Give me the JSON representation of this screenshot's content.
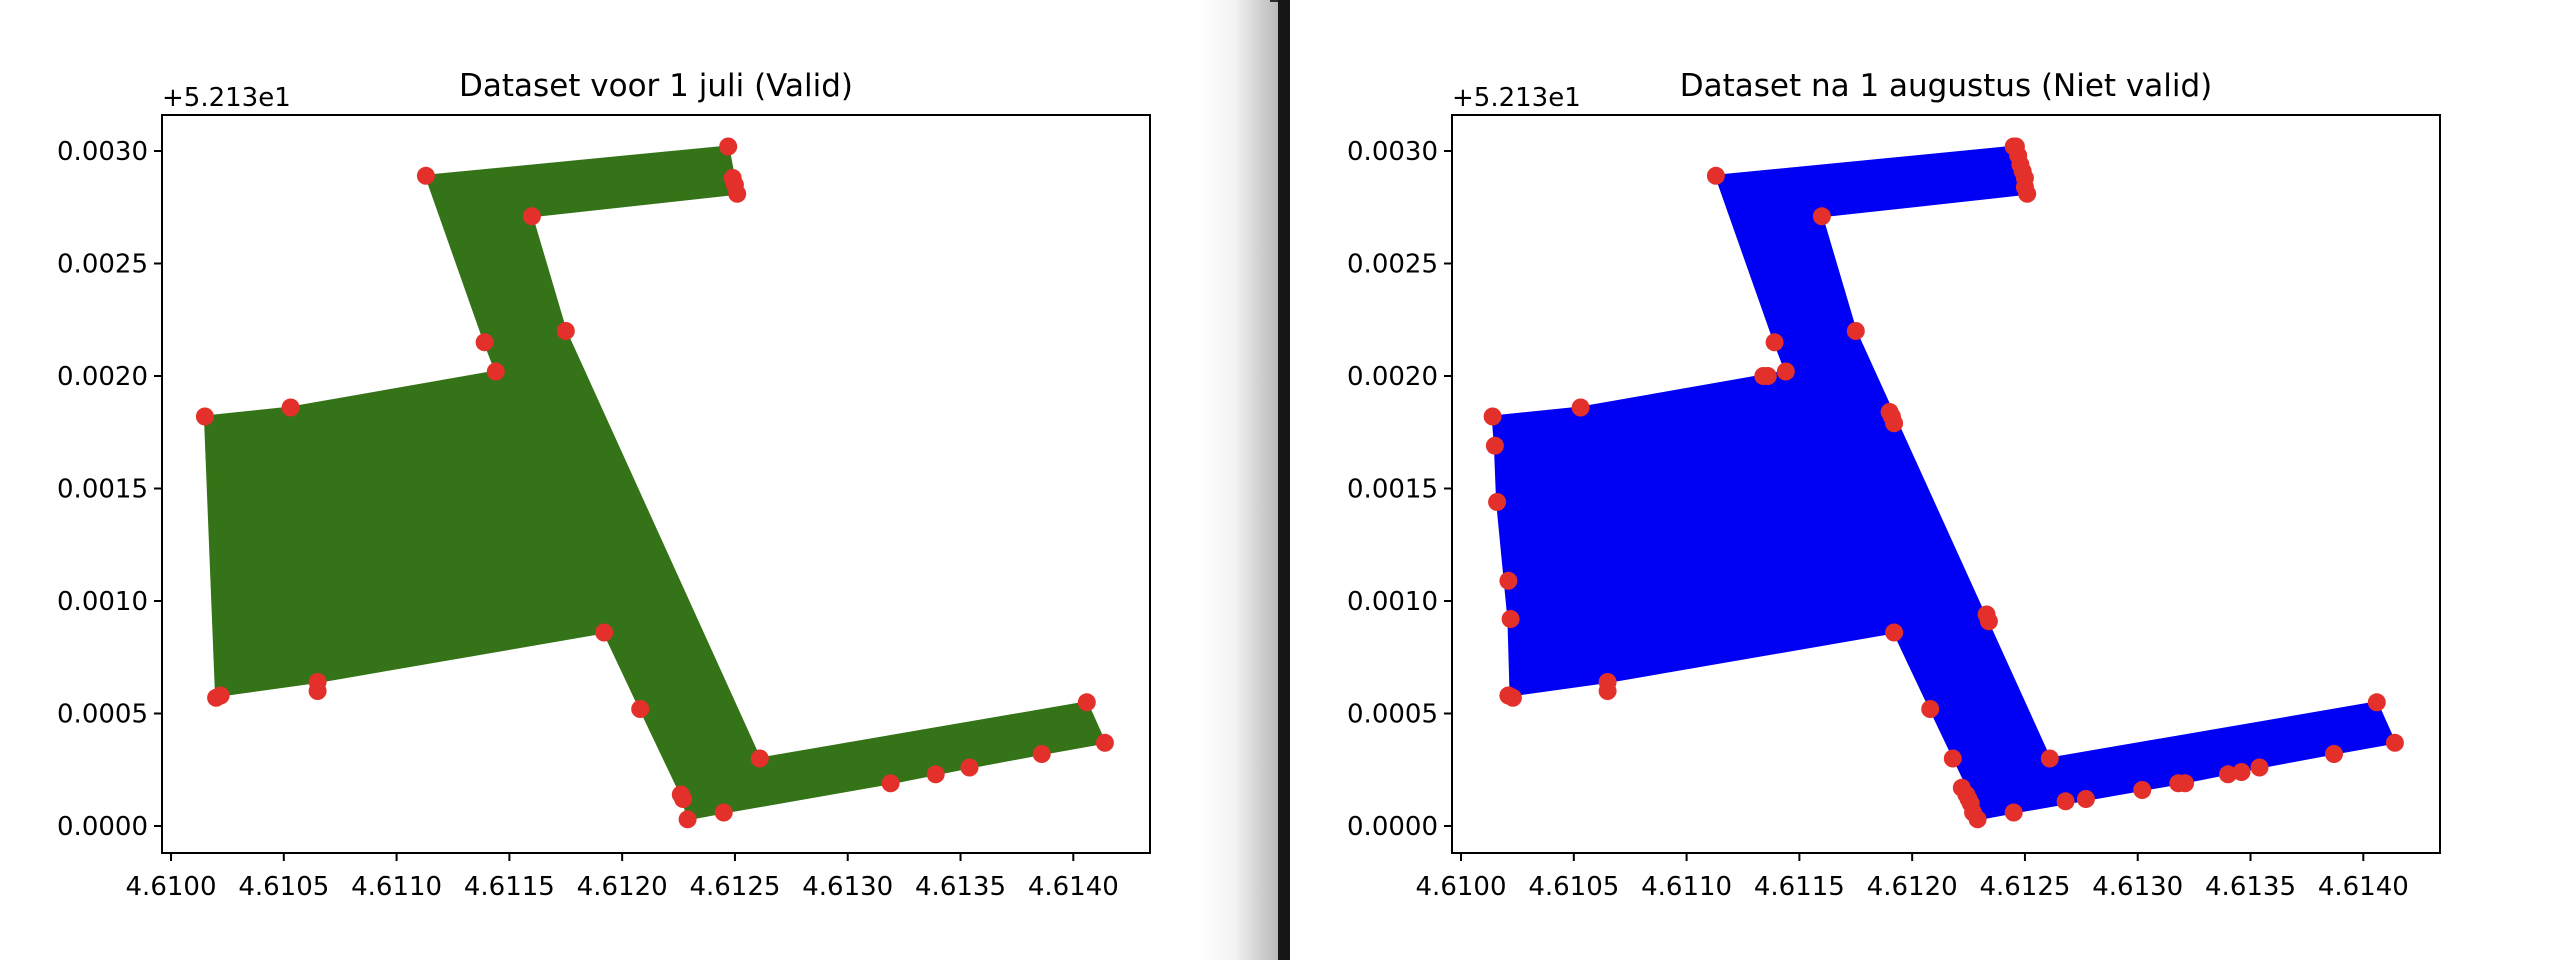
{
  "chart_data": [
    {
      "type": "scatter",
      "title": "Dataset voor 1 juli (Valid)",
      "fill_color": "#347317",
      "marker_color": "#e3302a",
      "y_offset_label": "+5.213e1",
      "x_ticks": [
        4.61,
        4.6105,
        4.611,
        4.6115,
        4.612,
        4.6125,
        4.613,
        4.6135,
        4.614
      ],
      "x_tick_labels": [
        "4.6100",
        "4.6105",
        "4.6110",
        "4.6115",
        "4.6120",
        "4.6125",
        "4.6130",
        "4.6135",
        "4.6140"
      ],
      "y_ticks": [
        0.0,
        0.0005,
        0.001,
        0.0015,
        0.002,
        0.0025,
        0.003
      ],
      "y_tick_labels": [
        "0.0000",
        "0.0005",
        "0.0010",
        "0.0015",
        "0.0020",
        "0.0025",
        "0.0030"
      ],
      "xlim": [
        4.60996,
        4.61434
      ],
      "ylim": [
        -0.00012,
        0.00316
      ],
      "polygon": [
        [
          4.61015,
          0.00182
        ],
        [
          4.61053,
          0.00186
        ],
        [
          4.61144,
          0.00202
        ],
        [
          4.61139,
          0.00215
        ],
        [
          4.61113,
          0.00289
        ],
        [
          4.61247,
          0.00302
        ],
        [
          4.61251,
          0.00281
        ],
        [
          4.6116,
          0.00271
        ],
        [
          4.61175,
          0.0022
        ],
        [
          4.61261,
          0.0003
        ],
        [
          4.61406,
          0.00055
        ],
        [
          4.61414,
          0.00037
        ],
        [
          4.61386,
          0.00032
        ],
        [
          4.61354,
          0.00026
        ],
        [
          4.61339,
          0.00023
        ],
        [
          4.61319,
          0.00019
        ],
        [
          4.61245,
          6e-05
        ],
        [
          4.61229,
          3e-05
        ],
        [
          4.61227,
          0.00012
        ],
        [
          4.61208,
          0.00052
        ],
        [
          4.61192,
          0.00086
        ],
        [
          4.61065,
          0.00064
        ],
        [
          4.61022,
          0.00058
        ],
        [
          4.6102,
          0.00057
        ]
      ],
      "points": [
        [
          4.61015,
          0.00182
        ],
        [
          4.61053,
          0.00186
        ],
        [
          4.61144,
          0.00202
        ],
        [
          4.61139,
          0.00215
        ],
        [
          4.61113,
          0.00289
        ],
        [
          4.61247,
          0.00302
        ],
        [
          4.61249,
          0.00288
        ],
        [
          4.6125,
          0.00285
        ],
        [
          4.61251,
          0.00281
        ],
        [
          4.6116,
          0.00271
        ],
        [
          4.61175,
          0.0022
        ],
        [
          4.61261,
          0.0003
        ],
        [
          4.61406,
          0.00055
        ],
        [
          4.61414,
          0.00037
        ],
        [
          4.61386,
          0.00032
        ],
        [
          4.61354,
          0.00026
        ],
        [
          4.61339,
          0.00023
        ],
        [
          4.61319,
          0.00019
        ],
        [
          4.61245,
          6e-05
        ],
        [
          4.61229,
          3e-05
        ],
        [
          4.61227,
          0.00012
        ],
        [
          4.61226,
          0.00014
        ],
        [
          4.61208,
          0.00052
        ],
        [
          4.61192,
          0.00086
        ],
        [
          4.61065,
          0.00064
        ],
        [
          4.61065,
          0.0006
        ],
        [
          4.61022,
          0.00058
        ],
        [
          4.6102,
          0.00057
        ]
      ]
    },
    {
      "type": "scatter",
      "title": "Dataset na 1 augustus (Niet valid)",
      "fill_color": "#0000f5",
      "marker_color": "#e3302a",
      "y_offset_label": "+5.213e1",
      "x_ticks": [
        4.61,
        4.6105,
        4.611,
        4.6115,
        4.612,
        4.6125,
        4.613,
        4.6135,
        4.614
      ],
      "x_tick_labels": [
        "4.6100",
        "4.6105",
        "4.6110",
        "4.6115",
        "4.6120",
        "4.6125",
        "4.6130",
        "4.6135",
        "4.6140"
      ],
      "y_ticks": [
        0.0,
        0.0005,
        0.001,
        0.0015,
        0.002,
        0.0025,
        0.003
      ],
      "y_tick_labels": [
        "0.0000",
        "0.0005",
        "0.0010",
        "0.0015",
        "0.0020",
        "0.0025",
        "0.0030"
      ],
      "xlim": [
        4.60996,
        4.61434
      ],
      "ylim": [
        -0.00012,
        0.00316
      ],
      "polygon": [
        [
          4.61014,
          0.00182
        ],
        [
          4.61053,
          0.00186
        ],
        [
          4.61144,
          0.00202
        ],
        [
          4.61139,
          0.00215
        ],
        [
          4.61113,
          0.00289
        ],
        [
          4.61246,
          0.00302
        ],
        [
          4.61251,
          0.00281
        ],
        [
          4.6116,
          0.00271
        ],
        [
          4.61175,
          0.0022
        ],
        [
          4.61261,
          0.0003
        ],
        [
          4.61406,
          0.00055
        ],
        [
          4.61414,
          0.00037
        ],
        [
          4.61386,
          0.00032
        ],
        [
          4.61354,
          0.00026
        ],
        [
          4.61339,
          0.00023
        ],
        [
          4.61319,
          0.00019
        ],
        [
          4.61245,
          6e-05
        ],
        [
          4.61229,
          3e-05
        ],
        [
          4.61227,
          0.00012
        ],
        [
          4.61208,
          0.00052
        ],
        [
          4.61192,
          0.00086
        ],
        [
          4.61065,
          0.00064
        ],
        [
          4.61022,
          0.00058
        ],
        [
          4.61021,
          0.00092
        ],
        [
          4.61016,
          0.00144
        ],
        [
          4.61015,
          0.00169
        ]
      ],
      "points": [
        [
          4.61014,
          0.00182
        ],
        [
          4.61015,
          0.00169
        ],
        [
          4.61016,
          0.00144
        ],
        [
          4.61021,
          0.00109
        ],
        [
          4.61022,
          0.00092
        ],
        [
          4.61021,
          0.00058
        ],
        [
          4.61023,
          0.00057
        ],
        [
          4.61065,
          0.00064
        ],
        [
          4.61065,
          0.0006
        ],
        [
          4.61053,
          0.00186
        ],
        [
          4.61113,
          0.00289
        ],
        [
          4.6116,
          0.00271
        ],
        [
          4.61175,
          0.0022
        ],
        [
          4.61139,
          0.00215
        ],
        [
          4.61144,
          0.00202
        ],
        [
          4.61136,
          0.002
        ],
        [
          4.61134,
          0.002
        ],
        [
          4.6119,
          0.00184
        ],
        [
          4.61191,
          0.00182
        ],
        [
          4.61192,
          0.00179
        ],
        [
          4.61192,
          0.00086
        ],
        [
          4.61233,
          0.00094
        ],
        [
          4.61234,
          0.00091
        ],
        [
          4.61208,
          0.00052
        ],
        [
          4.61218,
          0.0003
        ],
        [
          4.61222,
          0.00017
        ],
        [
          4.61224,
          0.00014
        ],
        [
          4.61225,
          0.00012
        ],
        [
          4.61226,
          0.0001
        ],
        [
          4.61227,
          6e-05
        ],
        [
          4.61229,
          3e-05
        ],
        [
          4.61245,
          6e-05
        ],
        [
          4.61245,
          0.00302
        ],
        [
          4.61246,
          0.00302
        ],
        [
          4.61247,
          0.00298
        ],
        [
          4.61248,
          0.00294
        ],
        [
          4.61249,
          0.00291
        ],
        [
          4.6125,
          0.00288
        ],
        [
          4.6125,
          0.00284
        ],
        [
          4.61251,
          0.00281
        ],
        [
          4.61261,
          0.0003
        ],
        [
          4.61268,
          0.00011
        ],
        [
          4.61277,
          0.00012
        ],
        [
          4.61302,
          0.00016
        ],
        [
          4.61318,
          0.00019
        ],
        [
          4.61321,
          0.00019
        ],
        [
          4.6134,
          0.00023
        ],
        [
          4.61346,
          0.00024
        ],
        [
          4.61354,
          0.00026
        ],
        [
          4.61387,
          0.00032
        ],
        [
          4.61406,
          0.00055
        ],
        [
          4.61414,
          0.00037
        ]
      ]
    }
  ]
}
